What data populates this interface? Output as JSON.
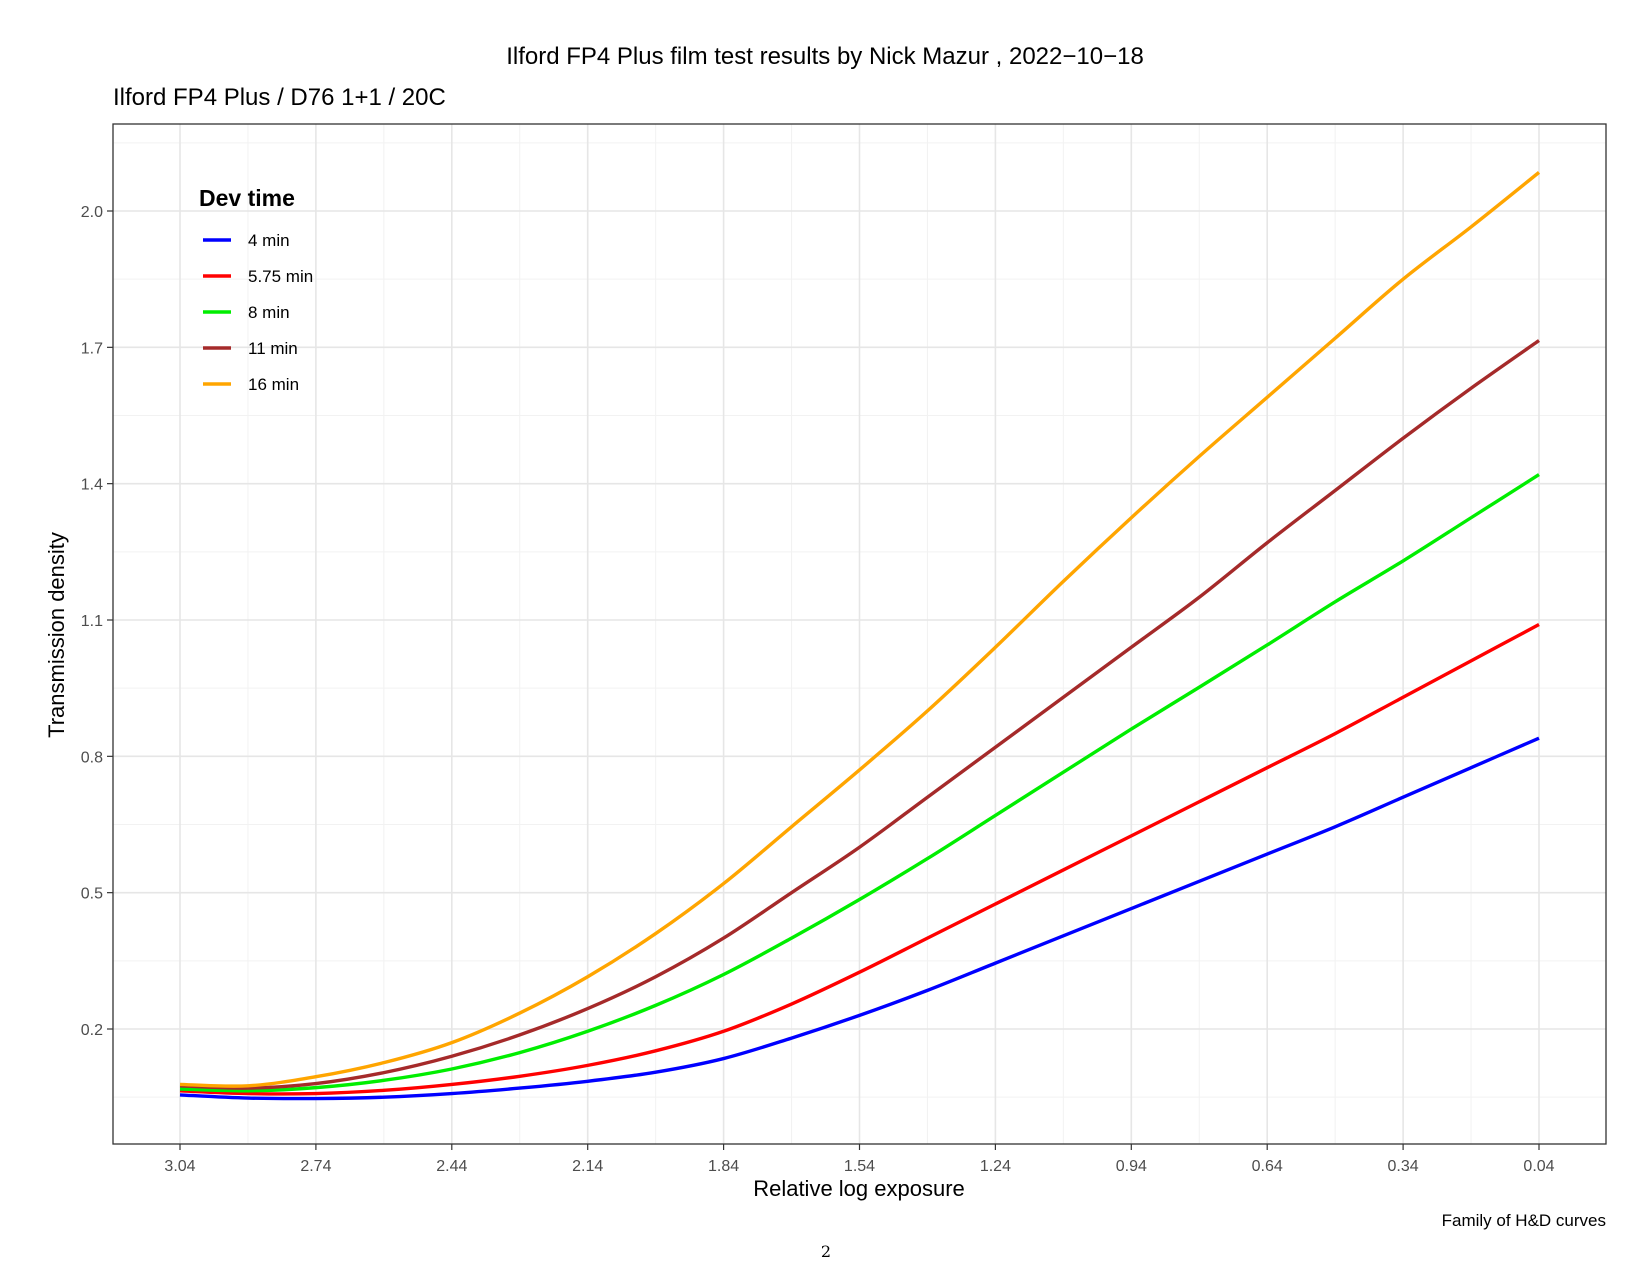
{
  "header": {
    "title": "Ilford FP4 Plus film test results by Nick Mazur , 2022−10−18"
  },
  "footer": {
    "caption": "Family of H&D curves",
    "page_number": "2"
  },
  "chart_data": {
    "type": "line",
    "title": "Ilford FP4 Plus / D76 1+1 / 20C",
    "xlabel": "Relative log exposure",
    "ylabel": "Transmission density",
    "x_reversed": true,
    "xlim": [
      3.19,
      0.04
    ],
    "ylim": [
      -0.05,
      2.16
    ],
    "x_ticks": [
      {
        "value": 3.04,
        "label": "3.04"
      },
      {
        "value": 2.74,
        "label": "2.74"
      },
      {
        "value": 2.44,
        "label": "2.44"
      },
      {
        "value": 2.14,
        "label": "2.14"
      },
      {
        "value": 1.84,
        "label": "1.84"
      },
      {
        "value": 1.54,
        "label": "1.54"
      },
      {
        "value": 1.24,
        "label": "1.24"
      },
      {
        "value": 0.94,
        "label": "0.94"
      },
      {
        "value": 0.64,
        "label": "0.64"
      },
      {
        "value": 0.34,
        "label": "0.34"
      },
      {
        "value": 0.04,
        "label": "0.04"
      }
    ],
    "y_ticks": [
      {
        "value": 0.2,
        "label": "0.2"
      },
      {
        "value": 0.5,
        "label": "0.5"
      },
      {
        "value": 0.8,
        "label": "0.8"
      },
      {
        "value": 1.1,
        "label": "1.1"
      },
      {
        "value": 1.4,
        "label": "1.4"
      },
      {
        "value": 1.7,
        "label": "1.7"
      },
      {
        "value": 2.0,
        "label": "2.0"
      }
    ],
    "grid": true,
    "legend": {
      "title": "Dev time",
      "position": "top-left inside"
    },
    "x": [
      3.04,
      2.89,
      2.74,
      2.59,
      2.44,
      2.29,
      2.14,
      1.99,
      1.84,
      1.69,
      1.54,
      1.39,
      1.24,
      1.09,
      0.94,
      0.79,
      0.64,
      0.49,
      0.34,
      0.19,
      0.04
    ],
    "series": [
      {
        "name": "4 min",
        "color": "#0000ff",
        "values": [
          0.055,
          0.048,
          0.047,
          0.05,
          0.058,
          0.07,
          0.085,
          0.105,
          0.135,
          0.18,
          0.23,
          0.285,
          0.345,
          0.405,
          0.465,
          0.525,
          0.585,
          0.645,
          0.71,
          0.775,
          0.84
        ]
      },
      {
        "name": "5.75 min",
        "color": "#ff0000",
        "values": [
          0.064,
          0.058,
          0.058,
          0.065,
          0.078,
          0.096,
          0.12,
          0.152,
          0.195,
          0.255,
          0.325,
          0.4,
          0.475,
          0.55,
          0.625,
          0.7,
          0.775,
          0.85,
          0.93,
          1.01,
          1.09
        ]
      },
      {
        "name": "8 min",
        "color": "#00ee00",
        "values": [
          0.068,
          0.064,
          0.071,
          0.087,
          0.112,
          0.148,
          0.195,
          0.252,
          0.32,
          0.4,
          0.485,
          0.575,
          0.67,
          0.765,
          0.86,
          0.952,
          1.045,
          1.14,
          1.23,
          1.325,
          1.42
        ]
      },
      {
        "name": "11 min",
        "color": "#a52a2a",
        "values": [
          0.075,
          0.07,
          0.08,
          0.104,
          0.14,
          0.187,
          0.245,
          0.315,
          0.4,
          0.5,
          0.6,
          0.71,
          0.82,
          0.93,
          1.04,
          1.15,
          1.27,
          1.385,
          1.5,
          1.61,
          1.715
        ]
      },
      {
        "name": "16 min",
        "color": "#ffa500",
        "values": [
          0.078,
          0.075,
          0.095,
          0.126,
          0.17,
          0.235,
          0.315,
          0.41,
          0.52,
          0.645,
          0.77,
          0.9,
          1.04,
          1.185,
          1.325,
          1.46,
          1.59,
          1.72,
          1.85,
          1.965,
          2.085
        ]
      }
    ]
  }
}
